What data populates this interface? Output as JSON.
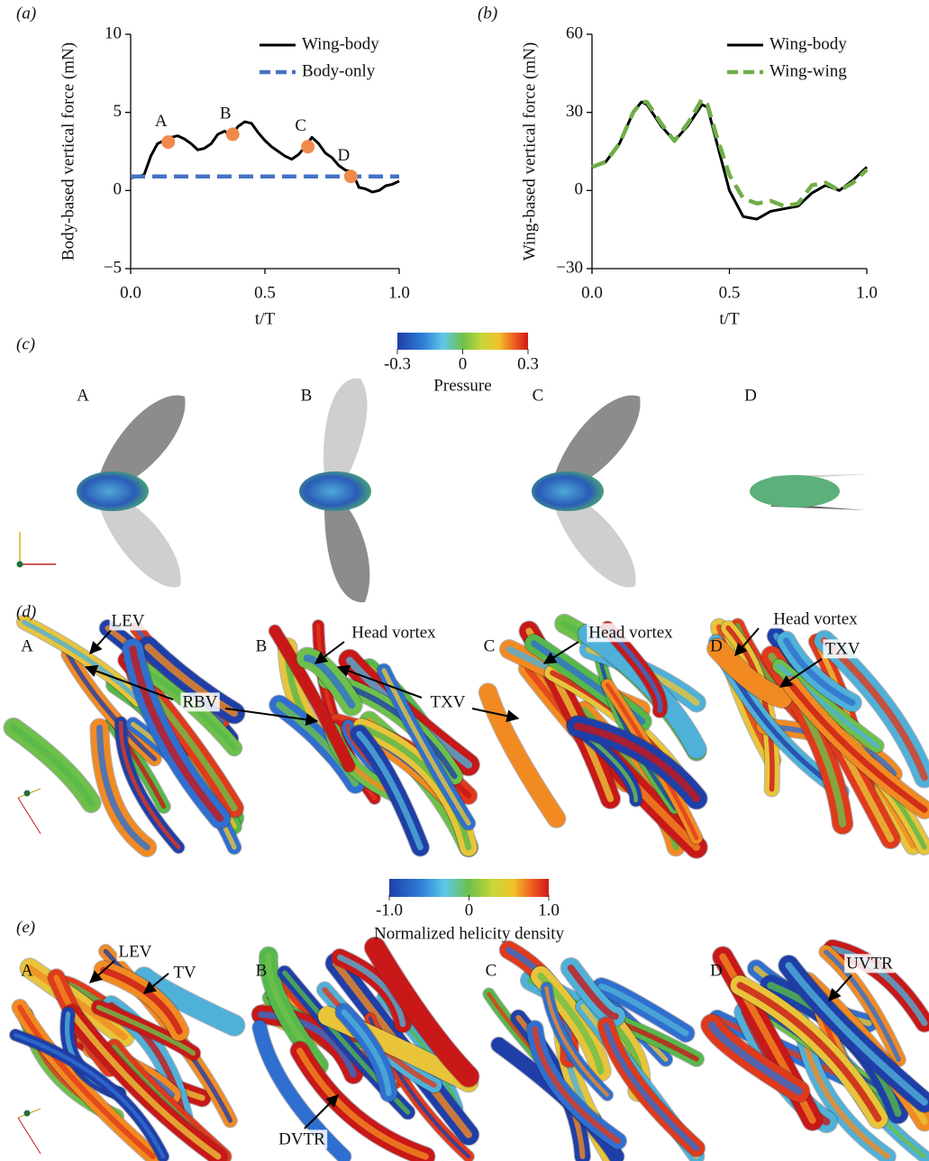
{
  "chart_data": [
    {
      "type": "line",
      "panel": "(a)",
      "xlabel": "t/T",
      "ylabel": "Body-based vertical force (mN)",
      "xlim": [
        0,
        1
      ],
      "ylim": [
        -5,
        10
      ],
      "xticks": [
        {
          "value": 0,
          "label": "0.0"
        },
        {
          "value": 0.5,
          "label": "0.5"
        },
        {
          "value": 1,
          "label": "1.0"
        }
      ],
      "yticks": [
        {
          "value": -5,
          "label": "−5"
        },
        0,
        5,
        10
      ],
      "legend": "upper right",
      "series": [
        {
          "name": "Wing-body",
          "color": "#000000",
          "linestyle": "solid",
          "x": [
            0,
            0.025,
            0.05,
            0.075,
            0.1,
            0.125,
            0.15,
            0.175,
            0.2,
            0.225,
            0.25,
            0.275,
            0.3,
            0.325,
            0.35,
            0.375,
            0.4,
            0.425,
            0.45,
            0.475,
            0.5,
            0.525,
            0.55,
            0.575,
            0.6,
            0.625,
            0.65,
            0.675,
            0.7,
            0.725,
            0.75,
            0.775,
            0.8,
            0.825,
            0.85,
            0.875,
            0.9,
            0.925,
            0.95,
            0.975,
            1
          ],
          "values": [
            0.8,
            0.9,
            1.0,
            2.2,
            3.0,
            3.2,
            3.4,
            3.5,
            3.3,
            3.0,
            2.6,
            2.7,
            3.0,
            3.6,
            3.8,
            3.5,
            4.1,
            4.4,
            4.3,
            3.7,
            3.2,
            2.8,
            2.5,
            2.2,
            2.0,
            2.3,
            2.8,
            3.4,
            3.0,
            2.4,
            2.1,
            1.6,
            1.3,
            1.2,
            0.2,
            0.1,
            -0.1,
            0.0,
            0.3,
            0.4,
            0.6
          ]
        },
        {
          "name": "Body-only",
          "color": "#4472c4",
          "linestyle": "dashed",
          "x": [
            0,
            1
          ],
          "values": [
            0.9,
            0.9
          ]
        }
      ],
      "points": {
        "labels": [
          "A",
          "B",
          "C",
          "D"
        ],
        "x": [
          0.14,
          0.38,
          0.66,
          0.82
        ],
        "values": [
          3.1,
          3.6,
          2.8,
          0.9
        ],
        "color": "#f08a4b"
      }
    },
    {
      "type": "line",
      "panel": "(b)",
      "xlabel": "t/T",
      "ylabel": "Wing-based vertical force (mN)",
      "xlim": [
        0,
        1
      ],
      "ylim": [
        -30,
        60
      ],
      "xticks": [
        {
          "value": 0,
          "label": "0.0"
        },
        {
          "value": 0.5,
          "label": "0.5"
        },
        {
          "value": 1,
          "label": "1.0"
        }
      ],
      "yticks": [
        {
          "value": -30,
          "label": "−30"
        },
        0,
        30,
        60
      ],
      "legend": "upper right",
      "series": [
        {
          "name": "Wing-body",
          "color": "#000000",
          "linestyle": "solid",
          "x": [
            0,
            0.05,
            0.1,
            0.15,
            0.18,
            0.2,
            0.25,
            0.3,
            0.35,
            0.4,
            0.42,
            0.45,
            0.5,
            0.55,
            0.6,
            0.65,
            0.7,
            0.75,
            0.8,
            0.85,
            0.9,
            0.95,
            1
          ],
          "values": [
            9,
            11,
            18,
            30,
            34,
            33,
            25,
            19,
            25,
            33,
            32,
            20,
            0,
            -10,
            -11,
            -8,
            -7,
            -6,
            -1,
            2,
            0,
            4,
            9
          ]
        },
        {
          "name": "Wing-wing",
          "color": "#70ad47",
          "linestyle": "dashed",
          "x": [
            0,
            0.05,
            0.1,
            0.15,
            0.18,
            0.2,
            0.25,
            0.3,
            0.35,
            0.4,
            0.42,
            0.45,
            0.5,
            0.55,
            0.6,
            0.65,
            0.7,
            0.75,
            0.8,
            0.85,
            0.9,
            0.95,
            1
          ],
          "values": [
            9,
            11,
            18,
            30,
            34,
            34,
            26,
            19,
            26,
            35,
            33,
            22,
            6,
            -3,
            -5,
            -4,
            -6,
            -5,
            2,
            3,
            0,
            3,
            8
          ]
        }
      ]
    }
  ],
  "figure": {
    "panel_c": {
      "label": "(c)",
      "frames": [
        "A",
        "B",
        "C",
        "D"
      ]
    },
    "pressure_colorbar": {
      "ticks": [
        -0.3,
        0,
        0.3
      ],
      "label": "Pressure"
    },
    "panel_d": {
      "label": "(d)",
      "frames": [
        "A",
        "B",
        "C",
        "D"
      ],
      "annotations": [
        "LEV",
        "Head vortex",
        "Head vortex",
        "Head vortex",
        "TXV",
        "RBV",
        "TXV"
      ]
    },
    "helicity_colorbar": {
      "ticks": [
        {
          "value": -1,
          "label": "-1.0"
        },
        0,
        {
          "value": 1,
          "label": "1.0"
        }
      ],
      "label": "Normalized helicity density"
    },
    "panel_e": {
      "label": "(e)",
      "frames": [
        "A",
        "B",
        "C",
        "D"
      ],
      "annotations": [
        "LEV",
        "TV",
        "UVTR",
        "DVTR"
      ]
    }
  }
}
